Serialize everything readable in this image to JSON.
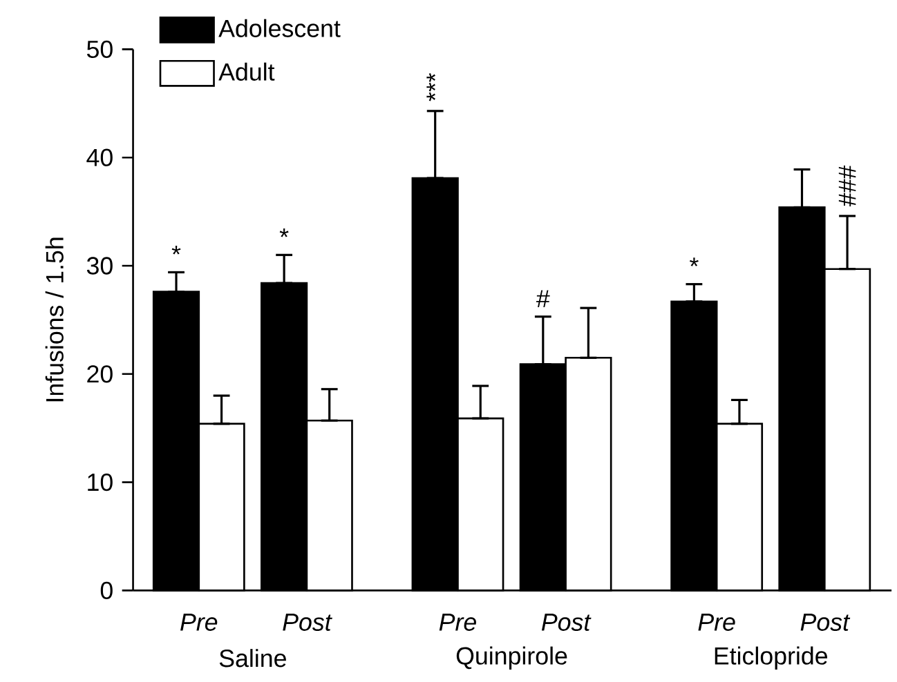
{
  "chart_data": {
    "type": "bar",
    "ylabel": "Infusions / 1.5h",
    "categories": [
      "Pre",
      "Post",
      "Pre",
      "Post",
      "Pre",
      "Post"
    ],
    "annotations": [
      "Saline",
      "Quinpirole",
      "Eticlopride"
    ],
    "ylim": [
      0,
      50
    ],
    "yticks": [
      0,
      10,
      20,
      30,
      40,
      50
    ],
    "legend": "top left",
    "series": [
      {
        "name": "Adolescent",
        "color": "#000000",
        "values": [
          27.6,
          28.4,
          38.1,
          20.9,
          26.7,
          35.4
        ],
        "errors": [
          [
            27.6,
            29.4
          ],
          [
            28.4,
            31.0
          ],
          [
            38.1,
            44.3
          ],
          [
            20.9,
            25.3
          ],
          [
            26.7,
            28.3
          ],
          [
            35.4,
            38.9
          ]
        ],
        "value_labels": [
          "*",
          "*",
          "***",
          "#",
          "*",
          null
        ]
      },
      {
        "name": "Adult",
        "color": "#ffffff",
        "values": [
          15.4,
          15.7,
          15.9,
          21.5,
          15.4,
          29.7
        ],
        "errors": [
          [
            15.4,
            18.0
          ],
          [
            15.7,
            18.6
          ],
          [
            15.9,
            18.9
          ],
          [
            21.5,
            26.1
          ],
          [
            15.4,
            17.6
          ],
          [
            29.7,
            34.6
          ]
        ],
        "value_labels": [
          null,
          null,
          null,
          null,
          null,
          "###"
        ]
      }
    ]
  }
}
